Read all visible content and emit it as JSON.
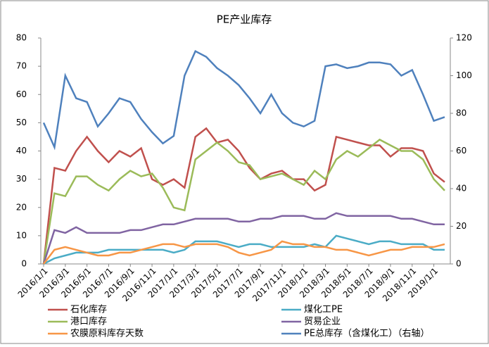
{
  "chart_data": {
    "type": "line",
    "title": "PE产业库存",
    "categories": [
      "2016/1/1",
      null,
      "2016/3/1",
      null,
      "2016/5/1",
      null,
      "2016/7/1",
      null,
      "2016/9/1",
      null,
      "2016/11/1",
      null,
      "2017/1/1",
      null,
      "2017/3/1",
      null,
      "2017/5/1",
      null,
      "2017/7/1",
      null,
      "2017/9/1",
      null,
      "2017/11/1",
      null,
      "2018/1/1",
      null,
      "2018/3/1",
      null,
      "2018/5/1",
      null,
      "2018/7/1",
      null,
      "2018/9/1",
      null,
      "2018/11/1",
      null,
      "2019/1/1",
      null
    ],
    "ylim": [
      0,
      80
    ],
    "yticks": [
      0,
      10,
      20,
      30,
      40,
      50,
      60,
      70,
      80
    ],
    "y2lim": [
      0,
      120
    ],
    "y2ticks": [
      0,
      20,
      40,
      60,
      80,
      100,
      120
    ],
    "legend": "bottom",
    "series": [
      {
        "name": "石化库存",
        "color": "#c0504d",
        "values": [
          0,
          34,
          33,
          40,
          45,
          40,
          36,
          40,
          38,
          41,
          30,
          28,
          30,
          27,
          45,
          48,
          43,
          44,
          40,
          34,
          30,
          32,
          33,
          30,
          30,
          26,
          28,
          45,
          44,
          43,
          42,
          42,
          38,
          41,
          41,
          40,
          32,
          29
        ]
      },
      {
        "name": "煤化工PE",
        "color": "#4bacc6",
        "values": [
          0,
          2,
          3,
          4,
          4,
          4,
          5,
          5,
          5,
          5,
          5,
          5,
          4,
          5,
          8,
          8,
          8,
          7,
          6,
          7,
          7,
          6,
          6,
          6,
          6,
          7,
          6,
          10,
          9,
          8,
          7,
          8,
          8,
          7,
          7,
          7,
          5,
          5
        ]
      },
      {
        "name": "港口库存",
        "color": "#9bbb59",
        "values": [
          0,
          25,
          24,
          31,
          31,
          28,
          26,
          30,
          33,
          31,
          32,
          27,
          20,
          19,
          37,
          40,
          43,
          40,
          36,
          35,
          30,
          31,
          32,
          30,
          28,
          33,
          30,
          37,
          40,
          38,
          41,
          44,
          42,
          40,
          40,
          37,
          30,
          26
        ]
      },
      {
        "name": "贸易企业",
        "color": "#8064a2",
        "values": [
          0,
          12,
          11,
          13,
          11,
          11,
          11,
          11,
          12,
          12,
          13,
          14,
          14,
          15,
          16,
          16,
          16,
          16,
          15,
          15,
          16,
          16,
          17,
          17,
          17,
          16,
          16,
          18,
          17,
          17,
          17,
          17,
          17,
          16,
          16,
          15,
          14,
          14
        ]
      },
      {
        "name": "农膜原料库存天数",
        "color": "#f79646",
        "values": [
          0,
          5,
          6,
          5,
          4,
          3,
          3,
          4,
          4,
          5,
          6,
          7,
          7,
          6,
          7,
          7,
          7,
          6,
          4,
          3,
          4,
          5,
          8,
          7,
          7,
          6,
          6,
          5,
          5,
          4,
          3,
          4,
          5,
          5,
          6,
          6,
          6,
          7
        ]
      },
      {
        "name": "PE总库存（含煤化工）（右轴）",
        "color": "#4f81bd",
        "axis": "y2",
        "values": [
          75,
          62,
          100,
          88,
          86,
          73,
          80,
          88,
          86,
          77,
          70,
          64,
          68,
          100,
          113,
          110,
          104,
          100,
          95,
          88,
          80,
          90,
          80,
          75,
          73,
          76,
          105,
          106,
          104,
          105,
          107,
          107,
          106,
          100,
          103,
          90,
          76,
          78
        ]
      }
    ]
  }
}
